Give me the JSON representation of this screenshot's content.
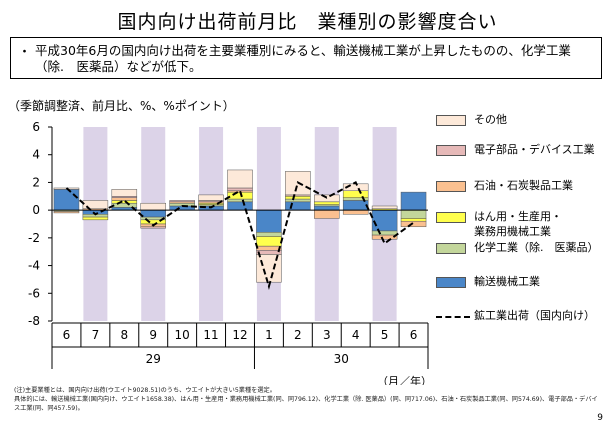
{
  "page": {
    "title": "国内向け出荷前月比　業種別の影響度合い",
    "bullet": "・",
    "summary": "平成30年6月の国内向け出荷を主要業種別にみると、輸送機械工業が上昇したものの、化学工業（除.　医薬品）などが低下。",
    "unit_note": "（季節調整済、前月比、%、%ポイント）",
    "footnote_1": "(注)主要業種とは、国内向け出荷(ウエイト9028.51)のうち、ウエイトが大きい5業種を選定。",
    "footnote_2": "具体的には、輸送機械工業(国内向け、ウエイト1658.38)、はん用・生産用・業務用機械工業(同、同796.12)、化学工業（除. 医薬品）(同、同717.06)、石油・石炭製品工業(同、同574.69)、電子部品・デバイス工業(同、同457.59)。",
    "page_number": "9"
  },
  "colors": {
    "transport": "#4a86c8",
    "chemical": "#c3d69b",
    "machinery": "#ffff4d",
    "petroleum": "#fac090",
    "electronic": "#e6b9b8",
    "other": "#fde9d9",
    "shade": "#dcd3e8",
    "line": "#000000"
  },
  "chart_data": {
    "type": "bar",
    "stacked": true,
    "categories": [
      "6",
      "7",
      "8",
      "9",
      "10",
      "11",
      "12",
      "1",
      "2",
      "3",
      "4",
      "5",
      "6"
    ],
    "year_labels": [
      {
        "label": "29",
        "span": [
          0,
          6
        ]
      },
      {
        "label": "30",
        "span": [
          7,
          12
        ]
      }
    ],
    "x_unit": "（月／年）",
    "ylim": [
      -8,
      6
    ],
    "yticks": [
      -8,
      -6,
      -4,
      -2,
      0,
      2,
      4,
      6
    ],
    "shaded_categories": [
      1,
      3,
      5,
      7,
      9,
      11
    ],
    "legend_position": "right",
    "series": [
      {
        "name": "輸送機械工業",
        "key": "transport",
        "values": [
          1.5,
          -0.3,
          0.2,
          -0.5,
          0.3,
          0.3,
          0.6,
          -1.6,
          0.6,
          0.3,
          0.7,
          -1.5,
          1.3
        ]
      },
      {
        "name": "化学工業（除.　医薬品）",
        "key": "chemical",
        "values": [
          -0.1,
          -0.2,
          0.3,
          -0.2,
          0.2,
          0.1,
          0.2,
          -0.3,
          0.2,
          0.1,
          0.2,
          -0.3,
          -0.6
        ]
      },
      {
        "name": "はん用・生産用・\n業務用機械工業",
        "key": "machinery",
        "values": [
          0.0,
          -0.2,
          0.2,
          -0.3,
          0.0,
          0.1,
          0.5,
          -0.7,
          0.2,
          0.2,
          0.5,
          0.1,
          -0.2
        ]
      },
      {
        "name": "石油・石炭製品工業",
        "key": "petroleum",
        "values": [
          -0.1,
          0.1,
          0.2,
          -0.2,
          0.1,
          0.1,
          0.1,
          -0.3,
          0.0,
          -0.6,
          -0.3,
          -0.3,
          -0.4
        ]
      },
      {
        "name": "電子部品・デバイス工業",
        "key": "electronic",
        "values": [
          0.0,
          0.0,
          0.1,
          -0.1,
          0.1,
          0.1,
          0.2,
          -0.3,
          0.1,
          0.0,
          0.0,
          0.0,
          0.0
        ]
      },
      {
        "name": "その他",
        "key": "other",
        "values": [
          0.1,
          0.6,
          0.5,
          0.5,
          0.0,
          0.4,
          1.3,
          -2.0,
          1.7,
          0.5,
          0.5,
          0.2,
          0.0
        ]
      }
    ],
    "line_series": {
      "name": "鉱工業出荷（国内向け）",
      "values": [
        1.6,
        -0.3,
        0.7,
        -1.1,
        0.3,
        0.2,
        1.4,
        -5.5,
        2.0,
        0.9,
        2.0,
        -2.4,
        -0.9
      ]
    }
  }
}
